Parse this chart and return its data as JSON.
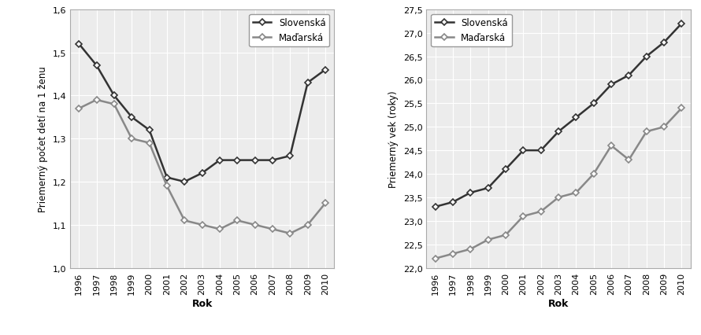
{
  "years": [
    1996,
    1997,
    1998,
    1999,
    2000,
    2001,
    2002,
    2003,
    2004,
    2005,
    2006,
    2007,
    2008,
    2009,
    2010
  ],
  "left_slovak": [
    1.52,
    1.47,
    1.4,
    1.35,
    1.32,
    1.21,
    1.2,
    1.22,
    1.25,
    1.25,
    1.25,
    1.25,
    1.26,
    1.43,
    1.46
  ],
  "left_magyar": [
    1.37,
    1.39,
    1.38,
    1.3,
    1.29,
    1.19,
    1.11,
    1.1,
    1.09,
    1.11,
    1.1,
    1.09,
    1.08,
    1.1,
    1.15
  ],
  "right_slovak": [
    23.3,
    23.4,
    23.6,
    23.7,
    24.1,
    24.5,
    24.5,
    24.9,
    25.2,
    25.5,
    25.9,
    26.1,
    26.5,
    26.8,
    27.2
  ],
  "right_magyar": [
    22.2,
    22.3,
    22.4,
    22.6,
    22.7,
    23.1,
    23.2,
    23.5,
    23.6,
    24.0,
    24.6,
    24.3,
    24.9,
    25.0,
    25.4
  ],
  "color_slovak": "#333333",
  "color_magyar": "#888888",
  "left_ylabel": "Priemerný počet detí na 1 ženu",
  "right_ylabel": "Priemerný vek (roky)",
  "xlabel": "Rok",
  "legend_slovak": "Slovenská",
  "legend_magyar": "Maďarská",
  "left_ylim": [
    1.0,
    1.6
  ],
  "left_yticks": [
    1.0,
    1.1,
    1.2,
    1.3,
    1.4,
    1.5,
    1.6
  ],
  "right_ylim": [
    22.0,
    27.5
  ],
  "right_yticks": [
    22.0,
    22.5,
    23.0,
    23.5,
    24.0,
    24.5,
    25.0,
    25.5,
    26.0,
    26.5,
    27.0,
    27.5
  ],
  "bg_color": "#ececec",
  "fig_bg": "#ffffff"
}
